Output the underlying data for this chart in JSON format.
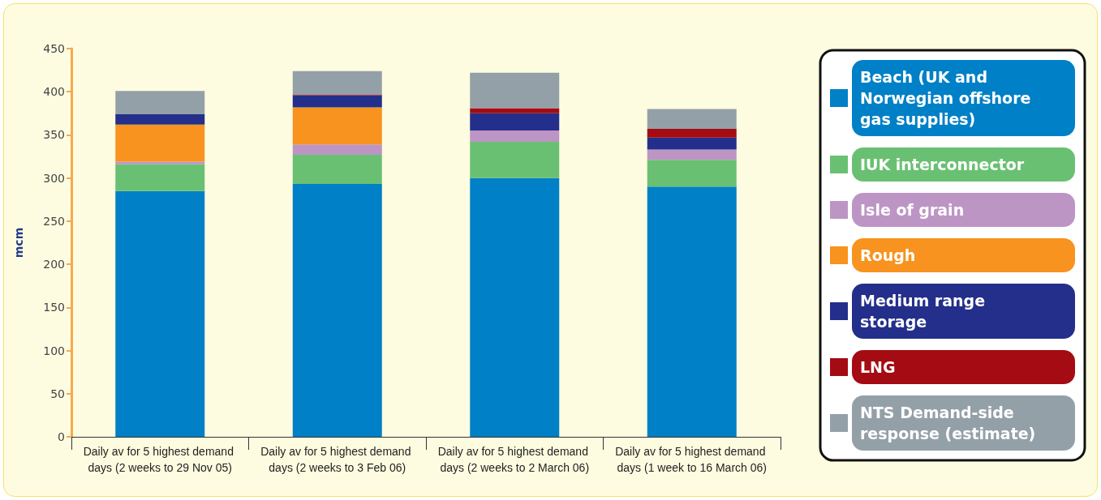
{
  "chart_data": {
    "type": "bar",
    "stacked": true,
    "ylabel": "mcm",
    "categories": [
      "Daily av for 5 highest demand days (2 weeks to 29 Nov 05)",
      "Daily av for 5 highest demand days (2 weeks to 3 Feb 06)",
      "Daily av for 5 highest demand days (2 weeks to 2 March 06)",
      "Daily av for 5 highest demand days (1 week to 16 March 06)"
    ],
    "series": [
      {
        "name": "Beach (UK and Norwegian offshore gas supplies)",
        "color": "#0080c6",
        "values": [
          285,
          293,
          300,
          290
        ]
      },
      {
        "name": "IUK interconnector",
        "color": "#6ac072",
        "values": [
          31,
          34,
          42,
          31
        ]
      },
      {
        "name": "Isle of grain",
        "color": "#bc95c5",
        "values": [
          3,
          12,
          13,
          12
        ]
      },
      {
        "name": "Rough",
        "color": "#f7931e",
        "values": [
          43,
          43,
          0,
          0
        ]
      },
      {
        "name": "Medium range storage",
        "color": "#232f8a",
        "values": [
          12,
          14,
          20,
          14
        ]
      },
      {
        "name": "LNG",
        "color": "#a50b12",
        "values": [
          0,
          1,
          6,
          10
        ]
      },
      {
        "name": "NTS Demand-side response (estimate)",
        "color": "#94a0a8",
        "values": [
          27,
          27,
          41,
          23
        ]
      }
    ],
    "ylim": [
      0,
      450
    ],
    "yticks": [
      0,
      50,
      100,
      150,
      200,
      250,
      300,
      350,
      400,
      450
    ],
    "grid": false,
    "legend": "right"
  }
}
